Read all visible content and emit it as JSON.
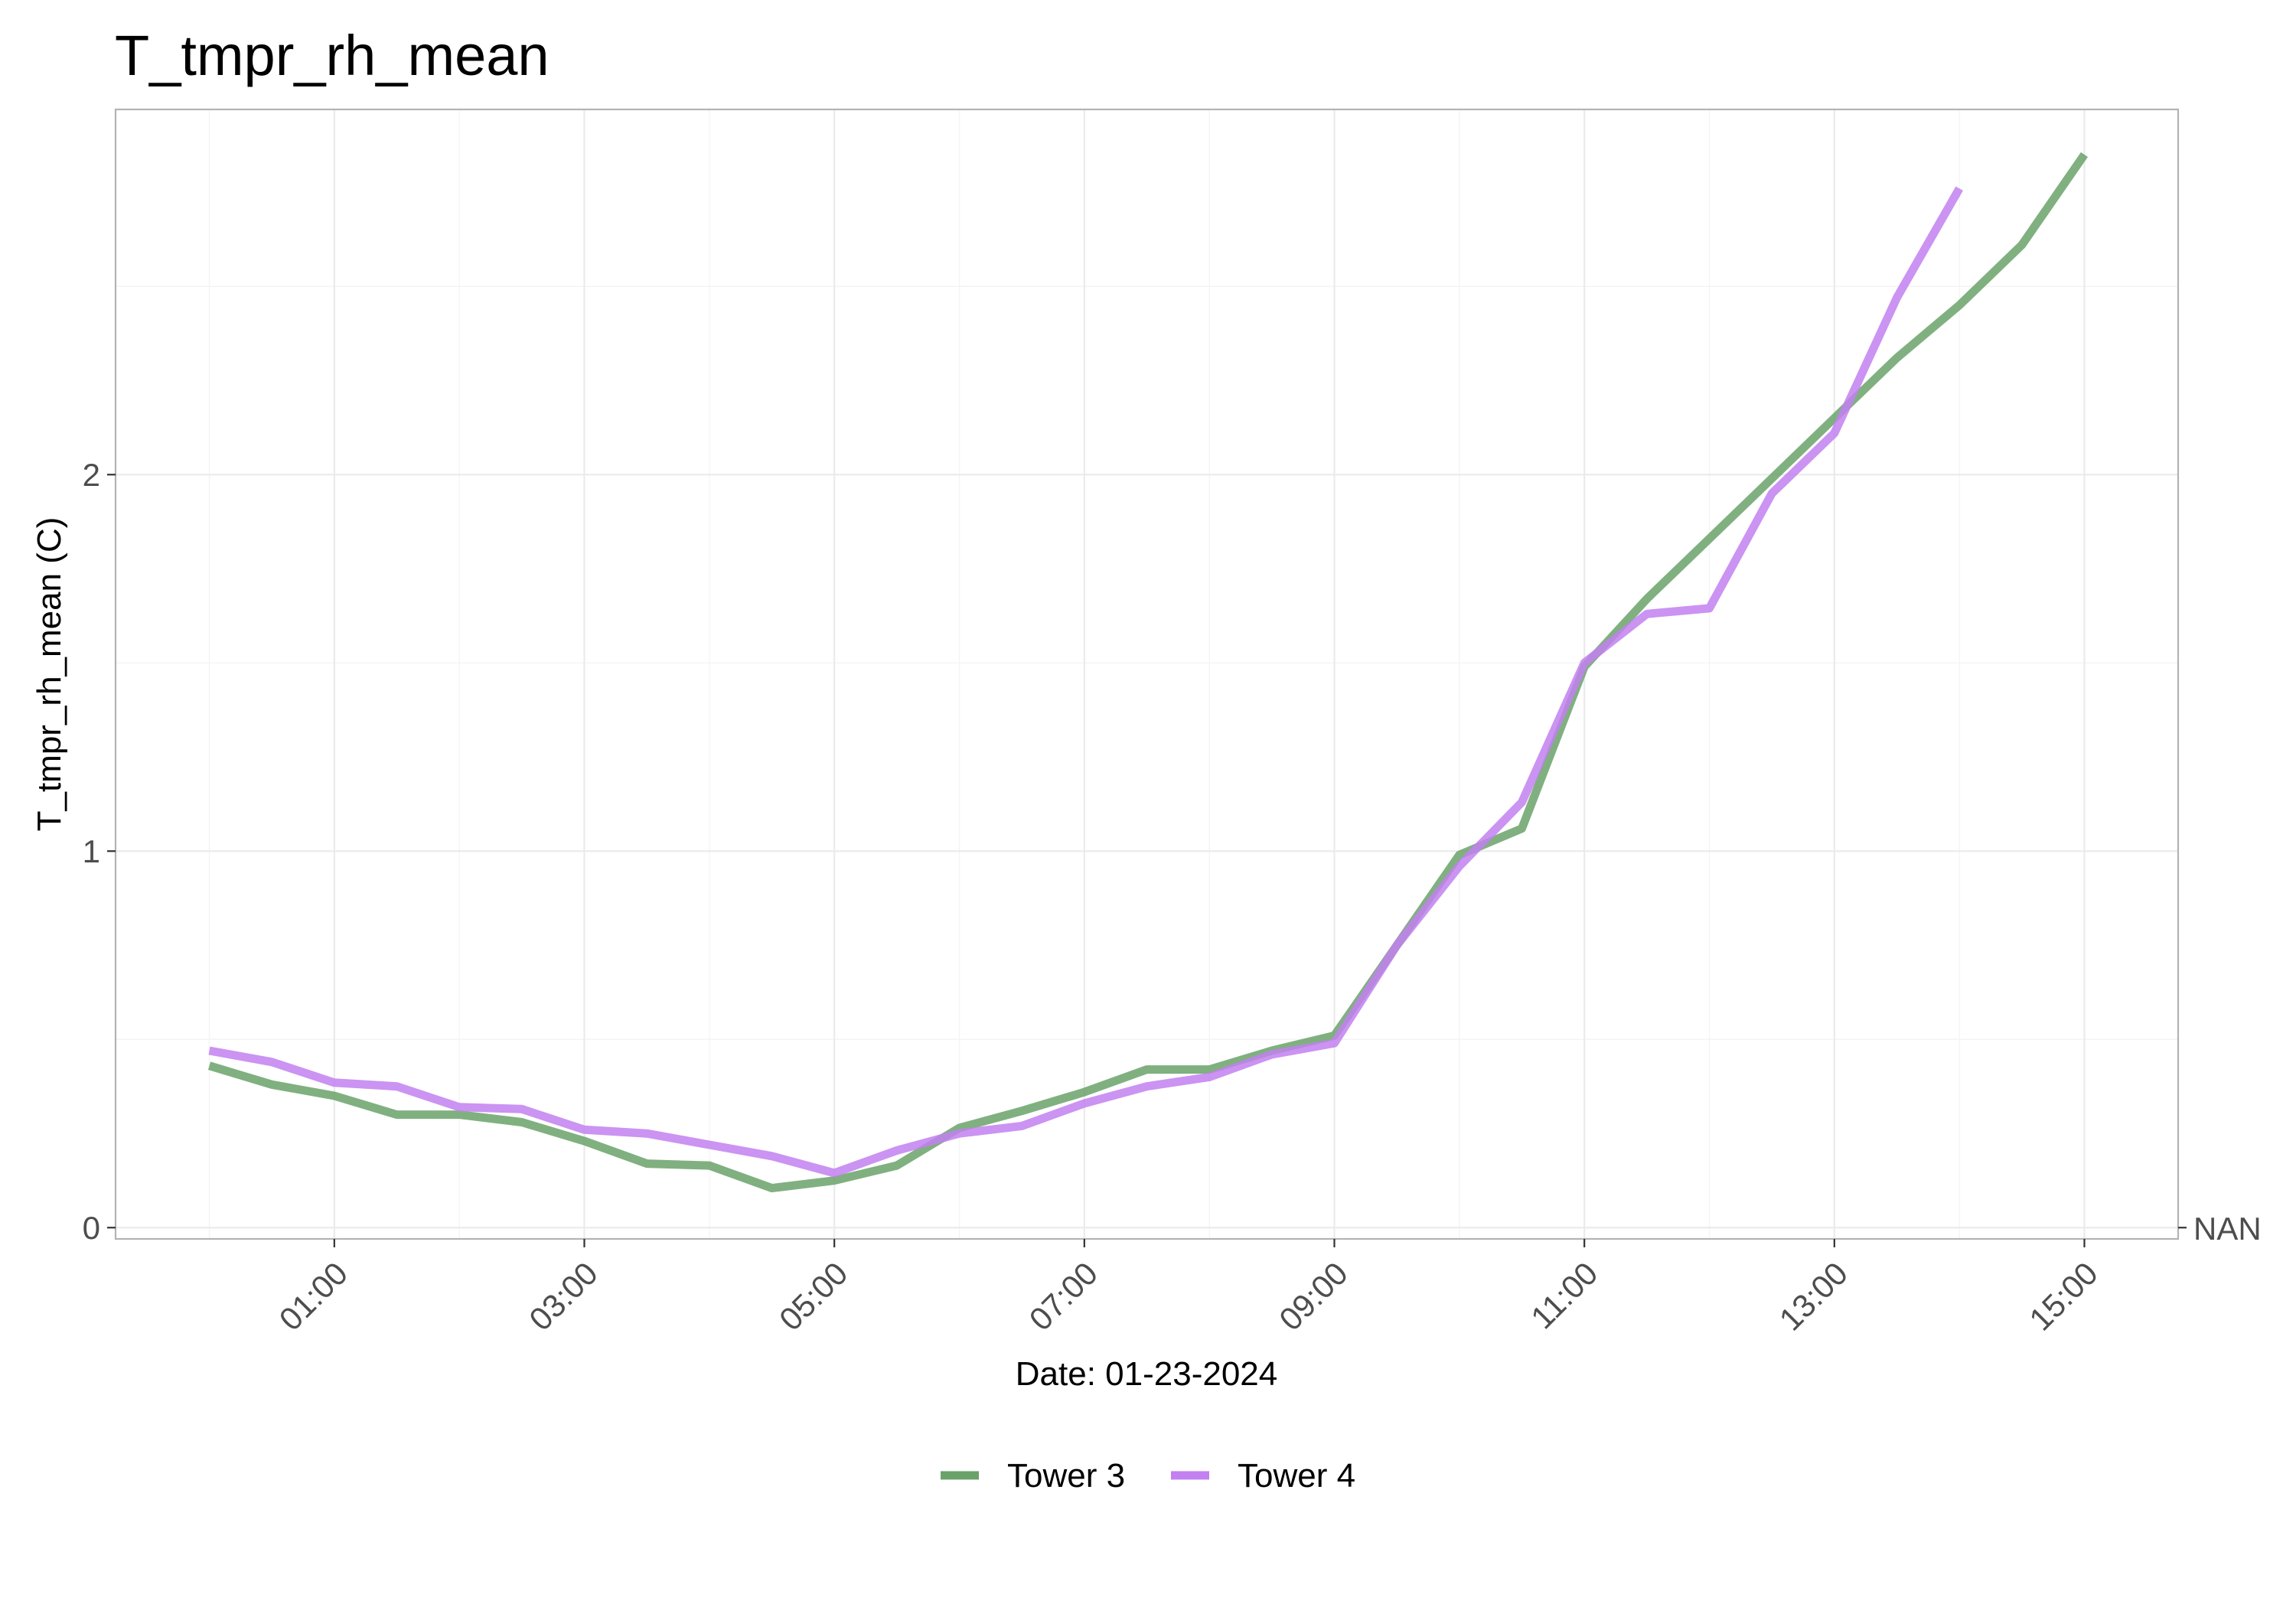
{
  "chart_data": {
    "type": "line",
    "title": "T_tmpr_rh_mean",
    "xlabel": "Date: 01-23-2024",
    "ylabel": "T_tmpr_rh_mean (C)",
    "x_ticks": [
      "01:00",
      "03:00",
      "05:00",
      "07:00",
      "09:00",
      "11:00",
      "13:00",
      "15:00"
    ],
    "x_tick_hours": [
      1,
      3,
      5,
      7,
      9,
      11,
      13,
      15
    ],
    "y_ticks": [
      0,
      1,
      2
    ],
    "xlim_hours": [
      -0.75,
      15.75
    ],
    "ylim": [
      -0.03,
      2.97
    ],
    "right_axis_label": "NAN",
    "grid": true,
    "legend_position": "bottom",
    "series": [
      {
        "name": "Tower 3",
        "color": "#6aa26a",
        "x_hours": [
          0,
          0.5,
          1,
          1.5,
          2,
          2.5,
          3,
          3.5,
          4,
          4.5,
          5,
          5.5,
          6,
          6.5,
          7,
          7.5,
          8,
          8.5,
          9,
          9.5,
          10,
          10.5,
          11,
          11.5,
          12,
          12.5,
          13,
          13.5,
          14,
          14.5,
          15
        ],
        "values": [
          0.43,
          0.38,
          0.35,
          0.3,
          0.3,
          0.28,
          0.23,
          0.17,
          0.165,
          0.105,
          0.125,
          0.165,
          0.265,
          0.31,
          0.36,
          0.42,
          0.42,
          0.47,
          0.51,
          0.75,
          0.99,
          1.06,
          1.49,
          1.67,
          1.83,
          1.99,
          2.15,
          2.31,
          2.45,
          2.61,
          2.85
        ]
      },
      {
        "name": "Tower 4",
        "color": "#c280f0",
        "x_hours": [
          0,
          0.5,
          1,
          1.5,
          2,
          2.5,
          3,
          3.5,
          4,
          4.5,
          5,
          5.5,
          6,
          6.5,
          7,
          7.5,
          8,
          8.5,
          9,
          9.5,
          10,
          10.5,
          11,
          11.5,
          12,
          12.5,
          13,
          13.5,
          14
        ],
        "values": [
          0.47,
          0.44,
          0.385,
          0.375,
          0.32,
          0.315,
          0.26,
          0.25,
          0.22,
          0.19,
          0.145,
          0.205,
          0.25,
          0.27,
          0.33,
          0.375,
          0.4,
          0.46,
          0.49,
          0.75,
          0.96,
          1.13,
          1.5,
          1.63,
          1.645,
          1.95,
          2.11,
          2.47,
          2.76
        ]
      }
    ]
  }
}
